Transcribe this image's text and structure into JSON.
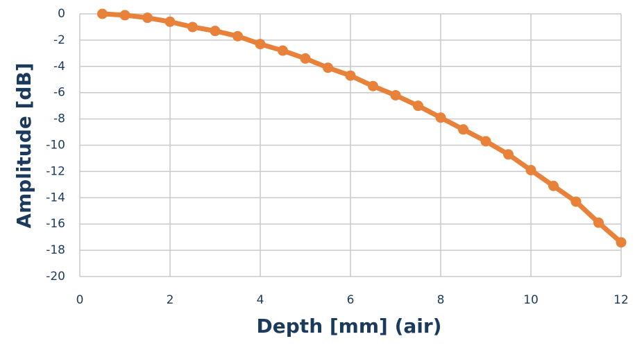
{
  "chart_data": {
    "type": "line",
    "xlabel": "Depth [mm] (air)",
    "ylabel": "Amplitude [dB]",
    "x": [
      0.5,
      1,
      1.5,
      2,
      2.5,
      3,
      3.5,
      4,
      4.5,
      5,
      5.5,
      6,
      6.5,
      7,
      7.5,
      8,
      8.5,
      9,
      9.5,
      10,
      10.5,
      11,
      11.5,
      12
    ],
    "series": [
      {
        "color": "#e8813a",
        "values": [
          0,
          -0.1,
          -0.3,
          -0.6,
          -1.0,
          -1.3,
          -1.7,
          -2.3,
          -2.8,
          -3.4,
          -4.1,
          -4.7,
          -5.5,
          -6.2,
          -7.0,
          -7.9,
          -8.8,
          -9.7,
          -10.7,
          -11.9,
          -13.1,
          -14.3,
          -15.9,
          -17.4
        ]
      }
    ],
    "xlim": [
      0,
      12
    ],
    "xticks": [
      0,
      2,
      4,
      6,
      8,
      10,
      12
    ],
    "ylim": [
      -20,
      0
    ],
    "yticks": [
      0,
      -2,
      -4,
      -6,
      -8,
      -10,
      -12,
      -14,
      -16,
      -18,
      -20
    ],
    "grid": true
  }
}
